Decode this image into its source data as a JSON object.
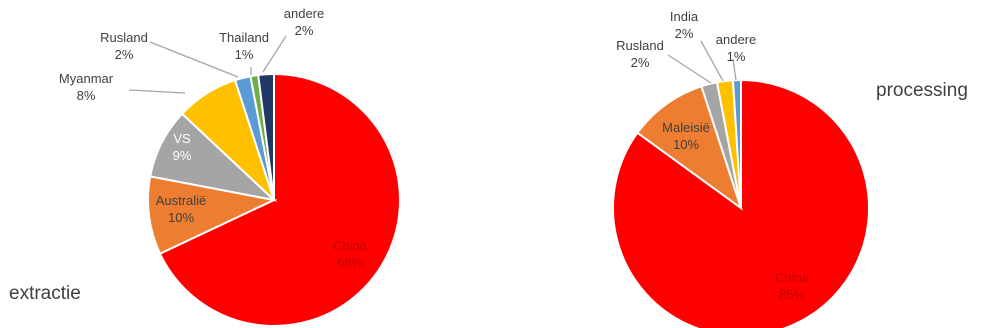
{
  "chart_data": [
    {
      "type": "pie",
      "title": "extractie",
      "slices": [
        {
          "label": "China",
          "pct": "68%",
          "value": 68,
          "color": "#ff0000",
          "text_color": "#c00000"
        },
        {
          "label": "Australië",
          "pct": "10%",
          "value": 10,
          "color": "#ed7d31",
          "text_color": "#404040"
        },
        {
          "label": "VS",
          "pct": "9%",
          "value": 9,
          "color": "#a5a5a5",
          "text_color": "#ffffff"
        },
        {
          "label": "Myanmar",
          "pct": "8%",
          "value": 8,
          "color": "#ffc000",
          "text_color": "#404040"
        },
        {
          "label": "Rusland",
          "pct": "2%",
          "value": 2,
          "color": "#5b9bd5",
          "text_color": "#404040"
        },
        {
          "label": "Thailand",
          "pct": "1%",
          "value": 1,
          "color": "#70ad47",
          "text_color": "#404040"
        },
        {
          "label": "andere",
          "pct": "2%",
          "value": 2,
          "color": "#203864",
          "text_color": "#404040"
        }
      ]
    },
    {
      "type": "pie",
      "title": "processing",
      "slices": [
        {
          "label": "China",
          "pct": "85%",
          "value": 85,
          "color": "#ff0000",
          "text_color": "#c00000"
        },
        {
          "label": "Maleisië",
          "pct": "10%",
          "value": 10,
          "color": "#ed7d31",
          "text_color": "#404040"
        },
        {
          "label": "Rusland",
          "pct": "2%",
          "value": 2,
          "color": "#a5a5a5",
          "text_color": "#404040"
        },
        {
          "label": "India",
          "pct": "2%",
          "value": 2,
          "color": "#ffc000",
          "text_color": "#404040"
        },
        {
          "label": "andere",
          "pct": "1%",
          "value": 1,
          "color": "#5b9bd5",
          "text_color": "#404040"
        }
      ]
    }
  ]
}
